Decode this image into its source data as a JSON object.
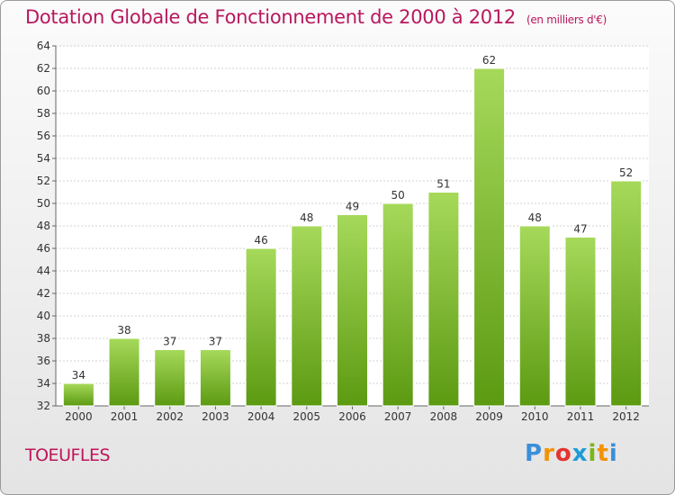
{
  "header": {
    "title": "Dotation Globale de Fonctionnement de 2000 à 2012",
    "subtitle": "(en milliers d'€)"
  },
  "footer": {
    "town": "TOEUFLES",
    "logo": "Proxiti"
  },
  "colors": {
    "title": "#b8185e",
    "bar_light": "#a6d95a",
    "bar_dark": "#5c9a12",
    "grid": "#d0d0d0"
  },
  "chart_data": {
    "type": "bar",
    "title": "Dotation Globale de Fonctionnement de 2000 à 2012",
    "subtitle": "(en milliers d'€)",
    "xlabel": "",
    "ylabel": "",
    "categories": [
      "2000",
      "2001",
      "2002",
      "2003",
      "2004",
      "2005",
      "2006",
      "2007",
      "2008",
      "2009",
      "2010",
      "2011",
      "2012"
    ],
    "values": [
      34,
      38,
      37,
      37,
      46,
      48,
      49,
      50,
      51,
      62,
      48,
      47,
      52
    ],
    "ylim": [
      32,
      64
    ],
    "yticks": [
      32,
      34,
      36,
      38,
      40,
      42,
      44,
      46,
      48,
      50,
      52,
      54,
      56,
      58,
      60,
      62,
      64
    ],
    "grid": true,
    "legend": "none"
  }
}
